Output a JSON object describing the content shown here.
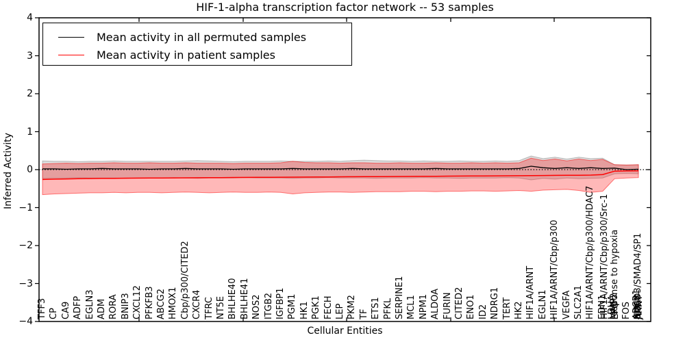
{
  "figure_title": "HIF-1-alpha transcription factor network -- 53 samples",
  "chart_data": {
    "type": "line",
    "title": "HIF-1-alpha transcription factor network -- 53 samples",
    "xlabel": "Cellular Entities",
    "ylabel": "Inferred Activity",
    "ylim": [
      -4,
      4
    ],
    "yticks": [
      "4",
      "3",
      "2",
      "1",
      "0",
      "−1",
      "−2",
      "−3",
      "−4"
    ],
    "ytick_values": [
      4,
      3,
      2,
      1,
      0,
      -1,
      -2,
      -3,
      -4
    ],
    "grid": false,
    "zero_line": "dotted",
    "legend_position": "upper left",
    "legend": [
      {
        "label": "Mean activity in all permuted samples",
        "color": "#000000"
      },
      {
        "label": "Mean activity in patient samples",
        "color": "#ff0000"
      }
    ],
    "colors": {
      "permuted_line": "#000000",
      "patient_line": "#ff0000",
      "permuted_band_fill": "rgba(0,0,0,0.14)",
      "permuted_band_edge": "rgba(0,0,0,0.22)",
      "patient_band_fill": "rgba(255,0,0,0.28)",
      "patient_band_edge": "rgba(255,0,0,0.5)"
    },
    "x_labels": [
      {
        "t": "TFF3",
        "i": 0
      },
      {
        "t": "CP",
        "i": 1
      },
      {
        "t": "CA9",
        "i": 2
      },
      {
        "t": "ADFP",
        "i": 3
      },
      {
        "t": "EGLN3",
        "i": 4
      },
      {
        "t": "ADM",
        "i": 5
      },
      {
        "t": "RORA",
        "i": 6
      },
      {
        "t": "BNIP3",
        "i": 7
      },
      {
        "t": "CXCL12",
        "i": 8
      },
      {
        "t": "PFKFB3",
        "i": 9
      },
      {
        "t": "ABCG2",
        "i": 10
      },
      {
        "t": "HMOX1",
        "i": 11
      },
      {
        "t": "Cbp/p300/CITED2",
        "i": 12
      },
      {
        "t": "CXCR4",
        "i": 13
      },
      {
        "t": "TFRC",
        "i": 14
      },
      {
        "t": "NT5E",
        "i": 15
      },
      {
        "t": "BHLHE40",
        "i": 16
      },
      {
        "t": "BHLHE41",
        "i": 17
      },
      {
        "t": "NOS2",
        "i": 18
      },
      {
        "t": "ITGB2",
        "i": 19
      },
      {
        "t": "IGFBP1",
        "i": 20
      },
      {
        "t": "PGM1",
        "i": 21
      },
      {
        "t": "HK1",
        "i": 22
      },
      {
        "t": "PGK1",
        "i": 23
      },
      {
        "t": "FECH",
        "i": 24
      },
      {
        "t": "LEP",
        "i": 25
      },
      {
        "t": "PKM2",
        "i": 26
      },
      {
        "t": "TF",
        "i": 27
      },
      {
        "t": "ETS1",
        "i": 28
      },
      {
        "t": "PFKL",
        "i": 29
      },
      {
        "t": "SERPINE1",
        "i": 30
      },
      {
        "t": "MCL1",
        "i": 31
      },
      {
        "t": "NPM1",
        "i": 32
      },
      {
        "t": "ALDOA",
        "i": 33
      },
      {
        "t": "FURIN",
        "i": 34
      },
      {
        "t": "CITED2",
        "i": 35
      },
      {
        "t": "ENO1",
        "i": 36
      },
      {
        "t": "ID2",
        "i": 37
      },
      {
        "t": "NDRG1",
        "i": 38
      },
      {
        "t": "TERT",
        "i": 39
      },
      {
        "t": "HK2",
        "i": 40
      },
      {
        "t": "HIF1A/ARNT",
        "i": 41
      },
      {
        "t": "EGLN1",
        "i": 42
      },
      {
        "t": "HIF1A/ARNT/Cbp/p300",
        "i": 43
      },
      {
        "t": "VEGFA",
        "i": 44
      },
      {
        "t": "SLC2A1",
        "i": 45
      },
      {
        "t": "HIF1A/ARNT/Cbp/p300/HDAC7",
        "i": 46
      },
      {
        "t": "EDN1",
        "i": 47,
        "o": 0
      },
      {
        "t": "HIF1A/ARNT/Cbp/p300/Src-1",
        "i": 47,
        "o": 3
      },
      {
        "t": "LDHA",
        "i": 48,
        "o": -3
      },
      {
        "t": "MMP2",
        "i": 48,
        "o": 0
      },
      {
        "t": "EPO",
        "i": 48,
        "o": 2
      },
      {
        "t": "response to hypoxia",
        "i": 48,
        "o": 1
      },
      {
        "t": "FOS",
        "i": 49
      },
      {
        "t": "ABCB1",
        "i": 50,
        "o": -2
      },
      {
        "t": "NOS3",
        "i": 50,
        "o": 0
      },
      {
        "t": "JUN",
        "i": 50,
        "o": 1
      },
      {
        "t": "ARNT",
        "i": 50,
        "o": 2
      },
      {
        "t": "SMAD3/SMAD4/SP1",
        "i": 50,
        "o": 0
      }
    ],
    "series": [
      {
        "name": "Mean activity in all permuted samples",
        "key": "permuted_mean",
        "values": [
          0.02,
          0.02,
          0.01,
          0.02,
          0.02,
          0.03,
          0.02,
          0.02,
          0.02,
          0.01,
          0.02,
          0.02,
          0.03,
          0.02,
          0.02,
          0.02,
          0.01,
          0.02,
          0.02,
          0.02,
          0.02,
          0.03,
          0.02,
          0.02,
          0.02,
          0.02,
          0.03,
          0.02,
          0.02,
          0.02,
          0.02,
          0.02,
          0.02,
          0.03,
          0.02,
          0.02,
          0.02,
          0.02,
          0.02,
          0.02,
          0.03,
          0.09,
          0.05,
          0.03,
          0.05,
          0.03,
          0.05,
          0.03,
          0.04,
          0.0,
          0.01
        ]
      },
      {
        "name": "Permuted band upper",
        "key": "permuted_upper",
        "values": [
          0.23,
          0.22,
          0.22,
          0.21,
          0.22,
          0.22,
          0.23,
          0.22,
          0.22,
          0.22,
          0.22,
          0.22,
          0.23,
          0.24,
          0.23,
          0.22,
          0.21,
          0.22,
          0.22,
          0.22,
          0.23,
          0.22,
          0.22,
          0.22,
          0.23,
          0.22,
          0.24,
          0.25,
          0.24,
          0.23,
          0.23,
          0.22,
          0.23,
          0.22,
          0.22,
          0.23,
          0.22,
          0.22,
          0.23,
          0.22,
          0.24,
          0.36,
          0.29,
          0.33,
          0.28,
          0.33,
          0.29,
          0.3,
          0.13,
          0.12,
          0.13
        ]
      },
      {
        "name": "Permuted band lower",
        "key": "permuted_lower",
        "values": [
          -0.23,
          -0.22,
          -0.22,
          -0.21,
          -0.22,
          -0.22,
          -0.22,
          -0.23,
          -0.22,
          -0.22,
          -0.22,
          -0.21,
          -0.22,
          -0.23,
          -0.22,
          -0.22,
          -0.22,
          -0.21,
          -0.22,
          -0.22,
          -0.22,
          -0.23,
          -0.22,
          -0.22,
          -0.21,
          -0.22,
          -0.22,
          -0.22,
          -0.23,
          -0.22,
          -0.22,
          -0.22,
          -0.21,
          -0.22,
          -0.22,
          -0.23,
          -0.22,
          -0.22,
          -0.22,
          -0.21,
          -0.22,
          -0.27,
          -0.23,
          -0.25,
          -0.22,
          -0.24,
          -0.23,
          -0.22,
          -0.11,
          -0.1,
          -0.11
        ]
      },
      {
        "name": "Mean activity in patient samples",
        "key": "patient_mean",
        "values": [
          -0.26,
          -0.25,
          -0.245,
          -0.24,
          -0.235,
          -0.23,
          -0.228,
          -0.226,
          -0.224,
          -0.222,
          -0.22,
          -0.218,
          -0.216,
          -0.214,
          -0.212,
          -0.21,
          -0.208,
          -0.206,
          -0.204,
          -0.202,
          -0.2,
          -0.198,
          -0.196,
          -0.194,
          -0.192,
          -0.19,
          -0.188,
          -0.186,
          -0.184,
          -0.182,
          -0.18,
          -0.178,
          -0.176,
          -0.174,
          -0.172,
          -0.17,
          -0.168,
          -0.166,
          -0.164,
          -0.162,
          -0.16,
          -0.158,
          -0.155,
          -0.152,
          -0.15,
          -0.148,
          -0.145,
          -0.13,
          -0.04,
          -0.035,
          -0.03
        ]
      },
      {
        "name": "Patient band upper",
        "key": "patient_upper",
        "values": [
          0.15,
          0.16,
          0.17,
          0.16,
          0.17,
          0.17,
          0.18,
          0.17,
          0.17,
          0.18,
          0.17,
          0.17,
          0.18,
          0.17,
          0.17,
          0.17,
          0.16,
          0.17,
          0.17,
          0.17,
          0.18,
          0.22,
          0.19,
          0.18,
          0.18,
          0.17,
          0.18,
          0.18,
          0.17,
          0.17,
          0.18,
          0.17,
          0.17,
          0.18,
          0.17,
          0.17,
          0.18,
          0.17,
          0.18,
          0.17,
          0.18,
          0.3,
          0.24,
          0.28,
          0.23,
          0.28,
          0.24,
          0.27,
          0.13,
          0.12,
          0.13
        ]
      },
      {
        "name": "Patient band lower",
        "key": "patient_lower",
        "values": [
          -0.66,
          -0.64,
          -0.63,
          -0.62,
          -0.61,
          -0.61,
          -0.6,
          -0.61,
          -0.6,
          -0.6,
          -0.61,
          -0.6,
          -0.59,
          -0.6,
          -0.61,
          -0.6,
          -0.59,
          -0.6,
          -0.6,
          -0.59,
          -0.6,
          -0.64,
          -0.61,
          -0.6,
          -0.59,
          -0.59,
          -0.6,
          -0.59,
          -0.58,
          -0.58,
          -0.58,
          -0.57,
          -0.57,
          -0.58,
          -0.57,
          -0.57,
          -0.56,
          -0.56,
          -0.57,
          -0.56,
          -0.55,
          -0.57,
          -0.54,
          -0.53,
          -0.52,
          -0.55,
          -0.6,
          -0.57,
          -0.24,
          -0.22,
          -0.21
        ]
      }
    ]
  }
}
